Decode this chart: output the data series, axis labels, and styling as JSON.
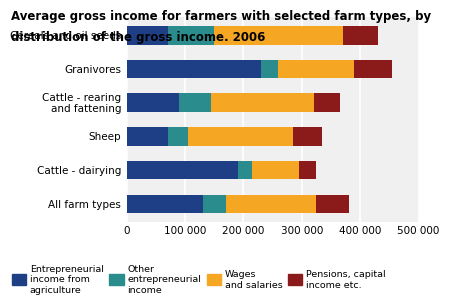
{
  "categories": [
    "All farm types",
    "Cattle - dairying",
    "Sheep",
    "Cattle - rearing\nand fattening",
    "Granivores",
    "Cereals and oil seeds"
  ],
  "entrepreneurial_ag": [
    130000,
    190000,
    70000,
    90000,
    230000,
    70000
  ],
  "other_entrepreneurial": [
    40000,
    25000,
    35000,
    55000,
    30000,
    80000
  ],
  "wages_salaries": [
    155000,
    80000,
    180000,
    175000,
    130000,
    220000
  ],
  "pensions_capital": [
    55000,
    30000,
    50000,
    45000,
    65000,
    60000
  ],
  "colors": {
    "entrepreneurial_ag": "#1e3f86",
    "other_entrepreneurial": "#2a8c8c",
    "wages_salaries": "#f5a623",
    "pensions_capital": "#8b1a1a"
  },
  "title_line1": "Average gross income for farmers with selected farm types, by",
  "title_line2": "distribution of the gross income. 2006",
  "xlim": [
    0,
    500000
  ],
  "xticks": [
    0,
    100000,
    200000,
    300000,
    400000,
    500000
  ],
  "xtick_labels": [
    "0",
    "100 000",
    "200 000",
    "300 000",
    "400 000",
    "500 000"
  ],
  "legend_labels": [
    "Entrepreneurial\nincome from\nagriculture",
    "Other\nentrepreneurial\nincome",
    "Wages\nand salaries",
    "Pensions, capital\nincome etc."
  ],
  "title_fontsize": 8.5,
  "tick_fontsize": 7.5,
  "bar_height": 0.55
}
